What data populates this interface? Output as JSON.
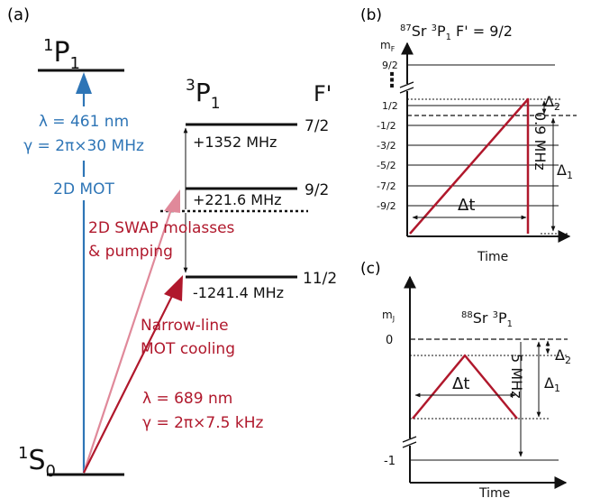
{
  "colors": {
    "blue": "#2e75b6",
    "red": "#b0182c",
    "pink": "#e0899a",
    "black": "#111111"
  },
  "panel_a": {
    "label": "(a)",
    "p1_main": "1",
    "p1_letter": "P",
    "p1_sub": "1",
    "p3_main": "3",
    "p3_letter": "P",
    "p3_sub": "1",
    "s0_main": "1",
    "s0_letter": "S",
    "s0_sub": "0",
    "f_prime": "F'",
    "levels": [
      {
        "f": "7/2",
        "shift": "+1352 MHz"
      },
      {
        "f": "9/2",
        "shift": "+221.6 MHz"
      },
      {
        "f": "11/2",
        "shift": "-1241.4 MHz"
      }
    ],
    "blue_lambda": "λ = 461 nm",
    "blue_gamma": "γ = 2π×30 MHz",
    "blue_mot": "2D MOT",
    "swap_line1": "2D SWAP molasses",
    "swap_line2": "& pumping",
    "narrow_line1": "Narrow-line",
    "narrow_line2": "MOT cooling",
    "red_lambda": "λ = 689 nm",
    "red_gamma": "γ = 2π×7.5 kHz"
  },
  "panel_b": {
    "label": "(b)",
    "title_mass": "87",
    "title_el": "Sr ",
    "title_mult": "3",
    "title_term": "P",
    "title_j": "1",
    "title_rest": " F' = 9/2",
    "ylabel_m": "m",
    "ylabel_sub": "F",
    "ticks": [
      "9/2",
      "1/2",
      "-1/2",
      "-3/2",
      "-5/2",
      "-7/2",
      "-9/2"
    ],
    "ellipsis": "⋮",
    "xlabel": "Time",
    "dt": "Δt",
    "delta1": "Δ",
    "delta1_sub": "1",
    "delta2": "Δ",
    "delta2_sub": "2",
    "span": "0.9 MHz"
  },
  "panel_c": {
    "label": "(c)",
    "title_mass": "88",
    "title_el": "Sr ",
    "title_mult": "3",
    "title_term": "P",
    "title_j": "1",
    "ylabel_m": "m",
    "ylabel_sub": "J",
    "ticks": [
      "0",
      "-1"
    ],
    "xlabel": "Time",
    "dt": "Δt",
    "delta1": "Δ",
    "delta1_sub": "1",
    "delta2": "Δ",
    "delta2_sub": "2",
    "span": "5 MHz"
  }
}
